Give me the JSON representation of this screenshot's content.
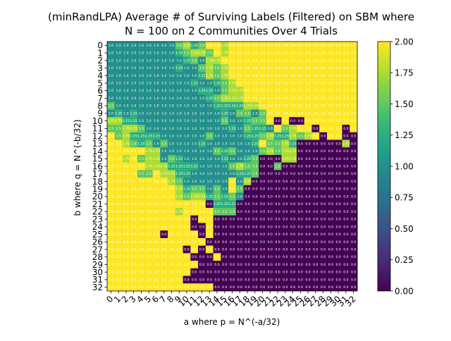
{
  "chart_data": {
    "type": "heatmap",
    "title_lines": [
      "(minRandLPA) Average # of Surviving Labels (Filtered) on SBM where",
      "N = 100 on 2 Communities Over 4 Trials"
    ],
    "xlabel": "a where p = N^(-a/32)",
    "ylabel": "b where q = N^(-b/32)",
    "x_ticks": [
      "0",
      "1",
      "2",
      "3",
      "4",
      "5",
      "6",
      "7",
      "8",
      "9",
      "10",
      "11",
      "12",
      "13",
      "14",
      "15",
      "16",
      "17",
      "18",
      "19",
      "20",
      "21",
      "22",
      "23",
      "24",
      "25",
      "26",
      "27",
      "28",
      "29",
      "30",
      "31",
      "32"
    ],
    "y_ticks": [
      "0",
      "1",
      "2",
      "3",
      "4",
      "5",
      "6",
      "7",
      "8",
      "9",
      "10",
      "11",
      "12",
      "13",
      "14",
      "15",
      "16",
      "17",
      "18",
      "19",
      "20",
      "21",
      "22",
      "23",
      "24",
      "25",
      "26",
      "27",
      "28",
      "29",
      "30",
      "31",
      "32"
    ],
    "colorbar": {
      "min": 0.0,
      "max": 2.0,
      "ticks": [
        "0.00",
        "0.25",
        "0.50",
        "0.75",
        "1.00",
        "1.25",
        "1.50",
        "1.75",
        "2.00"
      ],
      "colormap": "viridis"
    },
    "cell_annotations": "value shown in each cell",
    "grid": false,
    "nan_color": "#ffffff",
    "rows": [
      "1.0 1.0 1.0 1.0 1.0 1.0 1.0 1.0 1.0 1.5 1.75 1.25 1.5 2.0 2.0 1.75 2.0 2.0 2.0 2.0 2.0 2.0 2.0 2.0 2.0 2.0 2.0 2.0 2.0 2.0 2.0 2.0 2.0",
      "1.0 1.0 1.0 1.0 1.0 1.0 1.0 1.0 1.0 1.25 1.5 1.75 1.75 1.5 2.0 1.75 2.0 2.0 2.0 2.0 2.0 2.0 2.0 2.0 2.0 2.0 2.0 2.0 2.0 2.0 2.0 2.0 2.0",
      "1.0 1.0 1.0 1.0 1.0 1.0 1.0 1.0 1.0 1.0 1.25 1.5 1.0 1.75 1.75 2.0 2.0 2.0 2.0 2.0 2.0 2.0 2.0 2.0 2.0 2.0 2.0 2.0 2.0 2.0 2.0 2.0 2.0",
      "1.0 1.0 1.0 1.0 1.0 1.0 1.0 1.0 1.0 1.25 1.0 1.0 1.5 1.75 1.5 1.75 2.0 2.0 2.0 2.0 2.0 2.0 2.0 2.0 2.0 2.0 2.0 2.0 2.0 2.0 2.0 2.0 2.0",
      "1.0 1.0 1.0 1.0 1.0 1.0 1.0 1.0 1.0 1.0 1.0 1.0 1.25 1.75 1.5 1.75 2.0 2.0 2.0 2.0 2.0 2.0 2.0 2.0 2.0 2.0 2.0 2.0 2.0 2.0 2.0 2.0 2.0",
      "1.0 1.0 1.0 1.0 1.0 1.0 1.0 1.0 1.0 1.0 1.0 1.25 1.0 1.0 1.25 1.5 1.75 2.0 2.0 2.0 2.0 2.0 2.0 2.0 2.0 2.0 2.0 2.0 2.0 2.0 2.0 2.0 2.0",
      "1.0 1.0 1.0 1.0 1.0 1.0 1.0 1.0 1.0 1.0 1.0 1.0 1.25 1.25 1.0 1.5 1.75 1.75 2.0 2.0 2.0 2.0 2.0 2.0 2.0 2.0 2.0 2.0 2.0 2.0 2.0 2.0 2.0",
      "1.0 1.0 1.0 1.0 1.0 1.0 1.0 1.0 1.0 1.0 1.0 1.0 1.0 1.25 1.5 1.75 1.75 1.75 2.0 2.0 2.0 2.0 2.0 2.0 2.0 2.0 2.0 2.0 2.0 2.0 2.0 2.0 2.0",
      "1.5 1.0 1.0 1.0 1.0 1.0 1.0 1.0 1.0 1.0 1.0 1.0 1.0 1.0 1.25 1.25 1.25 1.25 1.75 1.75 2.0 2.0 2.0 2.0 2.0 2.0 2.0 2.0 2.0 2.0 2.0 2.0 2.0",
      "1.0 1.25 1.0 1.25 1.0 1.0 1.0 1.0 1.0 1.0 1.0 1.0 1.0 1.0 1.0 1.25 1.0 1.5 1.5 1.0 1.5 2.0 2.0 2.0 2.0 2.0 2.0 2.0 2.0 2.0 2.0 2.0 2.0",
      "1.75 1.75 1.25 1.25 1.0 1.0 1.0 1.0 1.0 1.0 1.0 1.0 1.0 1.0 1.0 1.5 1.0 1.0 1.25 1.5 1.5 2.0 0.0 2.0 0.0 0.0 2.0 2.0 2.0 2.0 2.0 2.0 2.0",
      "1.5 1.5 1.75 1.75 1.5 1.0 1.0 1.0 1.0 1.0 1.0 1.0 1.0 1.0 1.0 1.0 1.25 1.0 1.5 1.25 1.25 1.0 2.0 1.5 1.75 2.0 2.0 0.0 2.0 2.0 2.0 0.0 2.0",
      "2.0 1.5 1.75 1.25 1.25 1.25 1.25 1.0 1.0 1.0 1.0 1.0 1.0 1.5 1.0 1.0 1.0 1.0 1.25 1.25 1.5 1.75 1.25 1.25 1.75 1.5 1.75 2.0 0.0 2.0 2.0 0.0 0.0",
      "2.0 2.0 1.75 1.5 1.25 1.5 1.0 1.5 1.0 1.0 1.0 1.0 1.25 1.0 1.0 1.0 1.0 1.0 1.0 1.25 2.0 1.5 1.5 1.75 1.25 0.0 0.0 0.0 0.0 0.0 0.0 1.75 0.0",
      "2.0 2.0 2.0 2.0 2.0 1.75 1.75 1.0 1.0 1.0 1.0 1.0 1.0 1.0 1.5 1.25 1.5 1.0 1.0 1.0 1.5 1.75 1.5 1.75 1.75 0.0 0.0 0.0 0.0 0.0 0.0 0.0 0.0",
      "2.0 2.0 1.75 2.0 1.5 1.75 1.75 1.0 1.5 1.25 1.0 1.0 1.0 1.0 1.0 1.25 1.0 1.0 1.25 1.5 0.0 0.0 0.0 1.75 1.75 0.0 0.0 0.0 0.0 0.0 0.0 0.0 0.0",
      "2.0 2.0 2.0 2.0 2.0 1.75 1.75 1.75 1.25 1.25 1.25 1.25 1.0 1.0 1.0 1.0 1.5 1.75 1.5 1.5 0.0 0.0 1.5 0.0 0.0 0.0 0.0 0.0 0.0 0.0 0.0 0.0 0.0",
      "2.0 2.0 2.0 2.0 1.5 1.5 2.0 1.75 1.75 1.25 1.25 1.0 1.0 1.0 1.0 1.0 1.0 1.25 1.25 1.5 0.0 0.0 0.0 0.0 0.0 0.0 0.0 0.0 0.0 0.0 0.0 0.0 0.0",
      "2.0 2.0 2.0 2.0 2.0 2.0 2.0 2.0 1.75 1.5 1.0 1.0 1.0 1.0 1.0 1.0 2.0 1.0 1.75 0.0 0.0 0.0 0.0 0.0 0.0 0.0 0.0 0.0 0.0 0.0 0.0 0.0 0.0",
      "2.0 2.0 2.0 2.0 2.0 2.0 2.0 2.0 2.0 1.75 1.25 1.5 1.5 1.0 1.5 1.0 2.0 1.5 0.0 0.0 0.0 0.0 0.0 0.0 0.0 0.0 0.0 0.0 0.0 0.0 0.0 0.0 0.0",
      "2.0 2.0 2.0 2.0 2.0 2.0 2.0 2.0 2.0 1.75 1.5 1.75 1.75 1.25 1.5 1.25 1.5 1.0 0.0 0.0 0.0 0.0 0.0 0.0 0.0 0.0 0.0 0.0 0.0 0.0 0.0 0.0 0.0",
      "2.0 2.0 2.0 2.0 2.0 2.0 2.0 2.0 2.0 2.0 2.0 2.0 2.0 0.0 1.25 1.25 1.25 0.0 0.0 0.0 0.0 0.0 0.0 0.0 0.0 0.0 0.0 0.0 0.0 0.0 0.0 0.0 0.0",
      "2.0 2.0 2.0 2.0 2.0 2.0 2.0 2.0 2.0 1.75 2.0 2.0 2.0 2.0 1.5 1.5 1.5 0.0 0.0 0.0 0.0 0.0 0.0 0.0 0.0 0.0 0.0 0.0 0.0 0.0 0.0 0.0 0.0",
      "2.0 2.0 2.0 2.0 2.0 2.0 2.0 2.0 2.0 2.0 2.0 0.0 2.0 2.0 0.0 0.0 0.0 0.0 0.0 0.0 0.0 0.0 0.0 0.0 0.0 0.0 0.0 0.0 0.0 0.0 0.0 0.0 0.0",
      "2.0 2.0 2.0 2.0 2.0 2.0 2.0 2.0 2.0 2.0 2.0 0.0 0.0 2.0 0.0 0.0 0.0 0.0 0.0 0.0 0.0 0.0 0.0 0.0 0.0 0.0 0.0 0.0 0.0 0.0 0.0 0.0 0.0",
      "2.0 2.0 2.0 2.0 2.0 2.0 2.0 0.0 2.0 2.0 2.0 2.0 0.0 2.0 0.0 0.0 0.0 0.0 0.0 0.0 0.0 0.0 0.0 0.0 0.0 0.0 0.0 0.0 0.0 0.0 0.0 0.0 0.0",
      "2.0 2.0 2.0 2.0 2.0 2.0 2.0 2.0 2.0 2.0 2.0 2.0 2.0 0.0 0.0 0.0 0.0 0.0 0.0 0.0 0.0 0.0 0.0 0.0 0.0 0.0 0.0 0.0 0.0 0.0 0.0 0.0 0.0",
      "2.0 2.0 2.0 2.0 2.0 2.0 2.0 2.0 2.0 2.0 0.0 2.0 0.0 2.0 0.0 0.0 0.0 0.0 0.0 0.0 0.0 0.0 0.0 0.0 0.0 0.0 0.0 0.0 0.0 0.0 0.0 0.0 0.0",
      "2.0 2.0 2.0 2.0 2.0 2.0 2.0 2.0 2.0 2.0 2.0 0.0 0.0 0.0 2.0 0.0 0.0 0.0 0.0 0.0 0.0 0.0 0.0 0.0 0.0 0.0 0.0 0.0 0.0 0.0 0.0 0.0 0.0",
      "2.0 2.0 2.0 2.0 2.0 2.0 2.0 2.0 2.0 2.0 2.0 2.0 0.0 0.0 0.0 0.0 0.0 0.0 0.0 0.0 0.0 0.0 0.0 0.0 0.0 0.0 0.0 0.0 0.0 0.0 0.0 0.0 0.0",
      "2.0 2.0 2.0 2.0 2.0 2.0 2.0 2.0 2.0 2.0 2.0 0.0 0.0 0.0 0.0 0.0 0.0 0.0 0.0 0.0 0.0 0.0 0.0 0.0 0.0 0.0 0.0 0.0 0.0 0.0 0.0 0.0 0.0",
      "2.0 2.0 2.0 2.0 2.0 2.0 2.0 2.0 2.0 2.0 0.0 0.0 0.0 0.0 0.0 0.0 0.0 0.0 0.0 0.0 0.0 0.0 0.0 0.0 0.0 0.0 0.0 0.0 0.0 0.0 0.0 0.0 0.0",
      "2.0 2.0 2.0 2.0 2.0 2.0 2.0 2.0 2.0 2.0 2.0 2.0 2.0 2.0 0.0 0.0 0.0 0.0 0.0 0.0 0.0 0.0 0.0 0.0 0.0 0.0 0.0 0.0 0.0 0.0 0.0 0.0 0.0"
    ]
  }
}
